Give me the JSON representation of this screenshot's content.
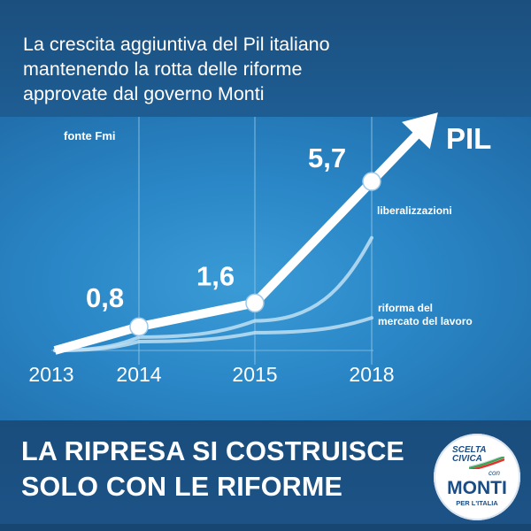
{
  "header": {
    "title_lines": [
      "La crescita aggiuntiva del Pil italiano",
      "mantenendo la rotta delle riforme",
      "approvate dal governo Monti"
    ]
  },
  "source": "fonte Fmi",
  "footer": {
    "slogan_lines": [
      "LA RIPRESA SI COSTRUISCE",
      "SOLO CON LE RIFORME"
    ]
  },
  "logo": {
    "scelta_lines": [
      "SCELTA",
      "CIVICA"
    ],
    "con": "con",
    "monti": "MONTI",
    "per_italia": "PER L'ITALIA",
    "flag_colors": [
      "#3aa655",
      "#ffffff",
      "#e2312f"
    ]
  },
  "colors": {
    "background": "#1d5f97",
    "main_line": "#ffffff",
    "secondary_lines": "#bfe0f3",
    "grid": "#8fc4e6"
  },
  "chart_data": {
    "type": "line",
    "x": [
      "2013",
      "2014",
      "2015",
      "2018"
    ],
    "series": [
      {
        "name": "PIL",
        "values": [
          0,
          0.8,
          1.6,
          5.7
        ],
        "data_labels": [
          "",
          "0,8",
          "1,6",
          "5,7"
        ],
        "color": "#ffffff",
        "style": "thick-arrow"
      },
      {
        "name": "liberalizzazioni",
        "values": [
          0,
          0.45,
          1.0,
          3.8
        ],
        "color": "#bfe0f3"
      },
      {
        "name": "riforma del mercato del lavoro",
        "values": [
          0,
          0.3,
          0.6,
          1.1
        ],
        "color": "#bfe0f3"
      }
    ],
    "title": "",
    "xlabel": "",
    "ylabel": "",
    "grid": "vertical",
    "legend": "inline labels at line ends"
  }
}
